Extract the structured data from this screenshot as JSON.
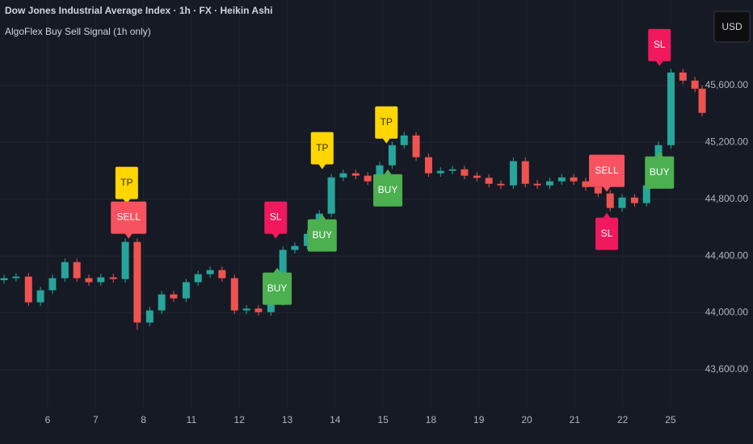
{
  "chart_data": {
    "type": "candlestick",
    "title": "Dow Jones Industrial Average Index · 1h · FX · Heikin Ashi",
    "subtitle": "AlgoFlex Buy Sell Signal (1h only)",
    "currency": "USD",
    "up_color": "#26a69a",
    "down_color": "#ef5350",
    "grid": true,
    "x": [
      -0.91,
      -0.66,
      -0.4,
      -0.15,
      0.1,
      0.36,
      0.61,
      0.86,
      1.11,
      1.37,
      1.62,
      1.87,
      2.13,
      2.38,
      2.63,
      2.89,
      3.14,
      3.39,
      3.64,
      3.9,
      4.15,
      4.4,
      4.66,
      4.91,
      5.16,
      5.42,
      5.67,
      5.92,
      6.17,
      6.43,
      6.68,
      6.93,
      7.19,
      7.44,
      7.69,
      7.95,
      8.2,
      8.45,
      8.7,
      8.96,
      9.21,
      9.46,
      9.72,
      9.97,
      10.22,
      10.48,
      10.73,
      10.98,
      11.23,
      11.49,
      11.74,
      11.99,
      12.25,
      12.5,
      12.75,
      13.01,
      13.26,
      13.51,
      13.66
    ],
    "open": [
      44230,
      44244,
      44255,
      44074,
      44159,
      44244,
      44357,
      44244,
      44216,
      44250,
      44238,
      44499,
      43932,
      44017,
      44130,
      44102,
      44216,
      44272,
      44301,
      44244,
      44017,
      44030,
      44005,
      44074,
      44443,
      44471,
      44556,
      44698,
      44953,
      44982,
      44965,
      44925,
      45038,
      45180,
      45248,
      45095,
      44982,
      44999,
      45010,
      44965,
      44950,
      44908,
      44897,
      45067,
      44908,
      44897,
      44925,
      44953,
      44925,
      44885,
      44840,
      44738,
      44811,
      44772,
      44897,
      45180,
      45691,
      45634,
      45577
    ],
    "high": [
      44269,
      44280,
      44280,
      44184,
      44269,
      44382,
      44382,
      44269,
      44275,
      44275,
      44524,
      44524,
      44042,
      44155,
      44155,
      44241,
      44297,
      44326,
      44326,
      44269,
      44055,
      44055,
      44099,
      44468,
      44496,
      44581,
      44723,
      44978,
      45007,
      45007,
      44990,
      45063,
      45205,
      45273,
      45273,
      45120,
      45024,
      45035,
      45035,
      44990,
      44975,
      44933,
      45092,
      45092,
      44933,
      44950,
      44978,
      44978,
      44950,
      44910,
      44865,
      44836,
      44836,
      44922,
      45205,
      45716,
      45716,
      45659,
      45602
    ],
    "low": [
      44205,
      44219,
      44049,
      44049,
      44134,
      44219,
      44219,
      44191,
      44191,
      44213,
      44213,
      43880,
      43907,
      43992,
      44077,
      44077,
      44191,
      44247,
      44219,
      43992,
      43992,
      43980,
      43980,
      44049,
      44418,
      44446,
      44531,
      44673,
      44928,
      44940,
      44900,
      44900,
      45013,
      45155,
      45070,
      44957,
      44957,
      44974,
      44940,
      44925,
      44883,
      44872,
      44872,
      44883,
      44872,
      44872,
      44900,
      44900,
      44860,
      44815,
      44713,
      44713,
      44747,
      44747,
      44872,
      45155,
      45609,
      45552,
      45382
    ],
    "close": [
      44244,
      44255,
      44074,
      44159,
      44244,
      44357,
      44244,
      44216,
      44250,
      44238,
      44499,
      43932,
      44017,
      44130,
      44102,
      44216,
      44272,
      44301,
      44244,
      44017,
      44030,
      44005,
      44074,
      44443,
      44471,
      44556,
      44698,
      44953,
      44982,
      44965,
      44925,
      45038,
      45180,
      45248,
      45095,
      44982,
      44999,
      45010,
      44965,
      44950,
      44908,
      44897,
      45067,
      44908,
      44897,
      44925,
      44953,
      44925,
      44885,
      44840,
      44738,
      44811,
      44772,
      44897,
      45180,
      45691,
      45634,
      45577,
      45407
    ],
    "xlim": [
      -0.995,
      13.71
    ],
    "xticks": [
      {
        "value": 0,
        "label": "6"
      },
      {
        "value": 1,
        "label": "7"
      },
      {
        "value": 2,
        "label": "8"
      },
      {
        "value": 3,
        "label": "11"
      },
      {
        "value": 4,
        "label": "12"
      },
      {
        "value": 5,
        "label": "13"
      },
      {
        "value": 6,
        "label": "14"
      },
      {
        "value": 7,
        "label": "15"
      },
      {
        "value": 8,
        "label": "18"
      },
      {
        "value": 9,
        "label": "19"
      },
      {
        "value": 10,
        "label": "20"
      },
      {
        "value": 11,
        "label": "21"
      },
      {
        "value": 12,
        "label": "22"
      },
      {
        "value": 13,
        "label": "25"
      }
    ],
    "ylim": [
      43333,
      46201
    ],
    "yticks": [
      {
        "value": 43600,
        "label": "43,600.00"
      },
      {
        "value": 44000,
        "label": "44,000.00"
      },
      {
        "value": 44400,
        "label": "44,400.00"
      },
      {
        "value": 44800,
        "label": "44,800.00"
      },
      {
        "value": 45200,
        "label": "45,200.00"
      },
      {
        "value": 45600,
        "label": "45,600.00"
      }
    ],
    "signals": [
      {
        "label": "TP",
        "x": 1.65,
        "y": 44755,
        "position": "above",
        "color": "#ffd600"
      },
      {
        "label": "SELL",
        "x": 1.69,
        "y": 44511,
        "position": "above",
        "color": "#f7525f"
      },
      {
        "label": "SL",
        "x": 4.76,
        "y": 44511,
        "position": "above",
        "color": "#f0195d"
      },
      {
        "label": "BUY",
        "x": 4.79,
        "y": 44329,
        "position": "below",
        "color": "#4caf50"
      },
      {
        "label": "TP",
        "x": 5.73,
        "y": 44999,
        "position": "above",
        "color": "#ffd600"
      },
      {
        "label": "BUY",
        "x": 5.73,
        "y": 44704,
        "position": "below",
        "color": "#4caf50"
      },
      {
        "label": "TP",
        "x": 7.07,
        "y": 45180,
        "position": "above",
        "color": "#ffd600"
      },
      {
        "label": "BUY",
        "x": 7.1,
        "y": 45021,
        "position": "below",
        "color": "#4caf50"
      },
      {
        "label": "SELL",
        "x": 11.67,
        "y": 44840,
        "position": "above",
        "color": "#f7525f"
      },
      {
        "label": "SL",
        "x": 11.67,
        "y": 44715,
        "position": "below",
        "color": "#f0195d"
      },
      {
        "label": "SL",
        "x": 12.77,
        "y": 45725,
        "position": "above",
        "color": "#f0195d"
      },
      {
        "label": "BUY",
        "x": 12.77,
        "y": 45146,
        "position": "below",
        "color": "#4caf50"
      }
    ]
  }
}
